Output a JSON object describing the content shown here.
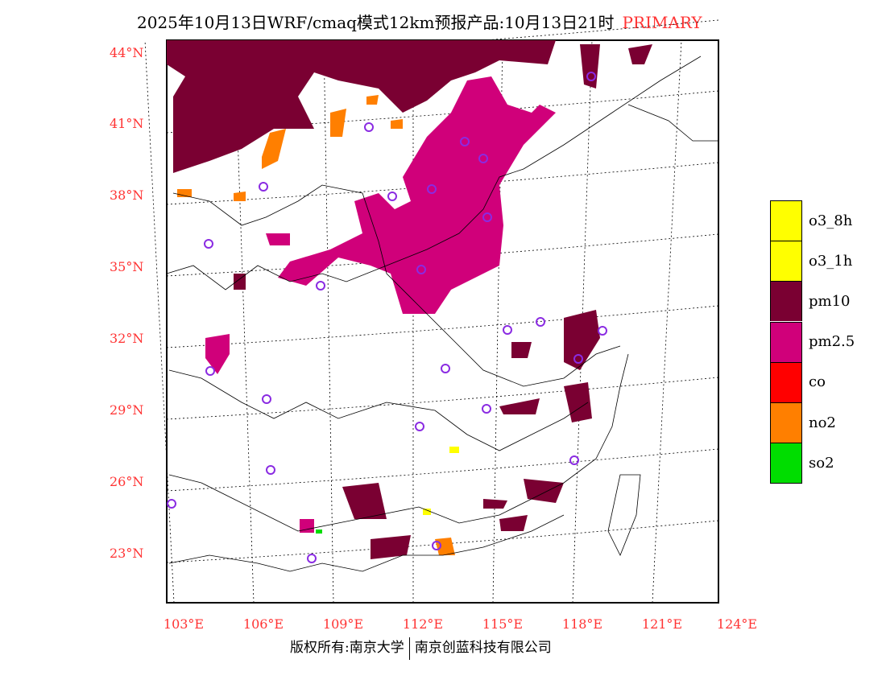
{
  "title": {
    "main": "2025年10月13日WRF/cmaq模式12km预报产品:10月13日21时",
    "tag": "PRIMARY"
  },
  "lat_labels": [
    "44°N",
    "41°N",
    "38°N",
    "35°N",
    "32°N",
    "29°N",
    "26°N",
    "23°N"
  ],
  "lon_labels": [
    "103°E",
    "106°E",
    "109°E",
    "112°E",
    "115°E",
    "118°E",
    "121°E",
    "124°E"
  ],
  "legend": [
    {
      "label": "o3_8h",
      "color": "#ffff00"
    },
    {
      "label": "o3_1h",
      "color": "#ffff00"
    },
    {
      "label": "pm10",
      "color": "#7a0032"
    },
    {
      "label": "pm2.5",
      "color": "#d0007a"
    },
    {
      "label": "co",
      "color": "#ff0000"
    },
    {
      "label": "no2",
      "color": "#ff7f00"
    },
    {
      "label": "so2",
      "color": "#00dd00"
    }
  ],
  "footer": {
    "left": "版权所有:南京大学",
    "right": "南京创蓝科技有限公司"
  }
}
